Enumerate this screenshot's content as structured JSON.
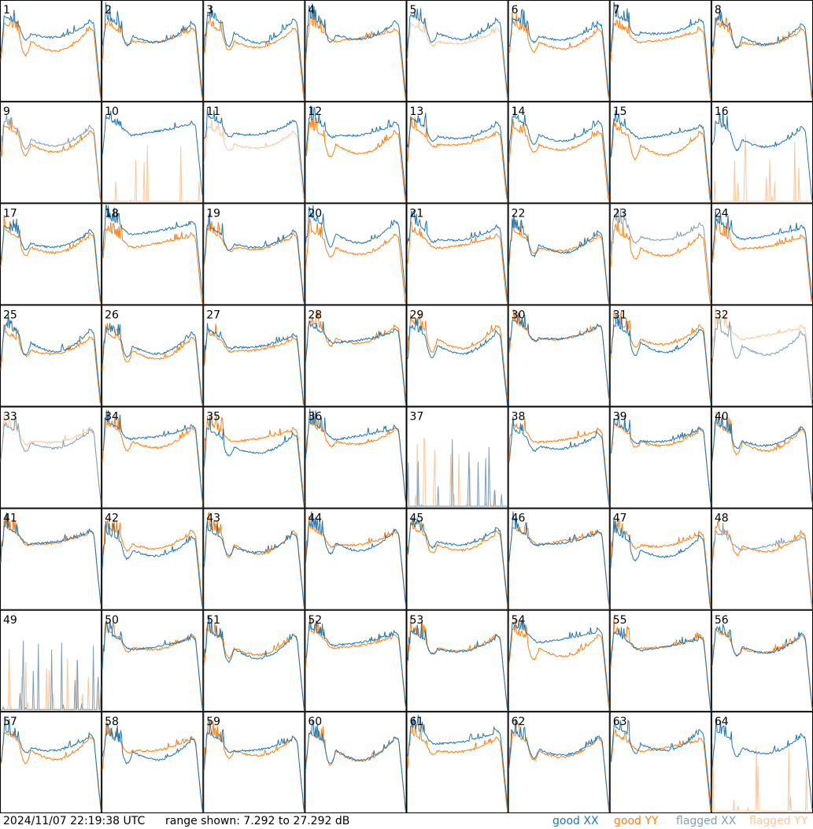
{
  "footer": {
    "timestamp": "2024/11/07 22:19:38 UTC",
    "range_text": "range shown: 7.292 to 27.292 dB"
  },
  "legend": [
    {
      "label": "good XX",
      "color": "#1f77b4"
    },
    {
      "label": "good YY",
      "color": "#ff7f0e"
    },
    {
      "label": "flagged XX",
      "color": "#7f9fb8"
    },
    {
      "label": "flagged YY",
      "color": "#fbc79a"
    }
  ],
  "chart_data": {
    "type": "line",
    "ylim": [
      7.292,
      27.292
    ],
    "units": "dB",
    "grid_rows": 8,
    "grid_cols": 8,
    "panels": [
      {
        "id": "1",
        "xx": "good",
        "yy": "good"
      },
      {
        "id": "2",
        "xx": "good",
        "yy": "good"
      },
      {
        "id": "3",
        "xx": "good",
        "yy": "good"
      },
      {
        "id": "4",
        "xx": "good",
        "yy": "good"
      },
      {
        "id": "5",
        "xx": "good",
        "yy": "flagged"
      },
      {
        "id": "6",
        "xx": "good",
        "yy": "good"
      },
      {
        "id": "7",
        "xx": "good",
        "yy": "good"
      },
      {
        "id": "8",
        "xx": "good",
        "yy": "good"
      },
      {
        "id": "9",
        "xx": "flagged",
        "yy": "good"
      },
      {
        "id": "10",
        "xx": "good",
        "yy": "flagged"
      },
      {
        "id": "11",
        "xx": "good",
        "yy": "flagged"
      },
      {
        "id": "12",
        "xx": "good",
        "yy": "good"
      },
      {
        "id": "13",
        "xx": "good",
        "yy": "good"
      },
      {
        "id": "14",
        "xx": "good",
        "yy": "good"
      },
      {
        "id": "15",
        "xx": "good",
        "yy": "good"
      },
      {
        "id": "16",
        "xx": "good",
        "yy": "flagged"
      },
      {
        "id": "17",
        "xx": "good",
        "yy": "good"
      },
      {
        "id": "18",
        "xx": "good",
        "yy": "good"
      },
      {
        "id": "19",
        "xx": "good",
        "yy": "good"
      },
      {
        "id": "20",
        "xx": "good",
        "yy": "good"
      },
      {
        "id": "21",
        "xx": "good",
        "yy": "good"
      },
      {
        "id": "22",
        "xx": "good",
        "yy": "good"
      },
      {
        "id": "23",
        "xx": "flagged",
        "yy": "good"
      },
      {
        "id": "24",
        "xx": "good",
        "yy": "good"
      },
      {
        "id": "25",
        "xx": "good",
        "yy": "good"
      },
      {
        "id": "26",
        "xx": "good",
        "yy": "good"
      },
      {
        "id": "27",
        "xx": "good",
        "yy": "good"
      },
      {
        "id": "28",
        "xx": "good",
        "yy": "good"
      },
      {
        "id": "29",
        "xx": "good",
        "yy": "good"
      },
      {
        "id": "30",
        "xx": "good",
        "yy": "good"
      },
      {
        "id": "31",
        "xx": "good",
        "yy": "good"
      },
      {
        "id": "32",
        "xx": "flagged",
        "yy": "flagged"
      },
      {
        "id": "33",
        "xx": "flagged",
        "yy": "flagged"
      },
      {
        "id": "34",
        "xx": "good",
        "yy": "good"
      },
      {
        "id": "35",
        "xx": "good",
        "yy": "good"
      },
      {
        "id": "36",
        "xx": "good",
        "yy": "good"
      },
      {
        "id": "37",
        "xx": "flagged",
        "yy": "flagged"
      },
      {
        "id": "38",
        "xx": "good",
        "yy": "good"
      },
      {
        "id": "39",
        "xx": "good",
        "yy": "good"
      },
      {
        "id": "40",
        "xx": "good",
        "yy": "good"
      },
      {
        "id": "41",
        "xx": "good",
        "yy": "good"
      },
      {
        "id": "42",
        "xx": "good",
        "yy": "good"
      },
      {
        "id": "43",
        "xx": "good",
        "yy": "good"
      },
      {
        "id": "44",
        "xx": "good",
        "yy": "good"
      },
      {
        "id": "45",
        "xx": "good",
        "yy": "good"
      },
      {
        "id": "46",
        "xx": "good",
        "yy": "good"
      },
      {
        "id": "47",
        "xx": "good",
        "yy": "good"
      },
      {
        "id": "48",
        "xx": "flagged",
        "yy": "good"
      },
      {
        "id": "49",
        "xx": "flagged",
        "yy": "flagged"
      },
      {
        "id": "50",
        "xx": "good",
        "yy": "good"
      },
      {
        "id": "51",
        "xx": "good",
        "yy": "good"
      },
      {
        "id": "52",
        "xx": "good",
        "yy": "good"
      },
      {
        "id": "53",
        "xx": "good",
        "yy": "good"
      },
      {
        "id": "54",
        "xx": "good",
        "yy": "good"
      },
      {
        "id": "55",
        "xx": "good",
        "yy": "good"
      },
      {
        "id": "56",
        "xx": "good",
        "yy": "good"
      },
      {
        "id": "57",
        "xx": "good",
        "yy": "good"
      },
      {
        "id": "58",
        "xx": "good",
        "yy": "good"
      },
      {
        "id": "59",
        "xx": "good",
        "yy": "good"
      },
      {
        "id": "60",
        "xx": "good",
        "yy": "good"
      },
      {
        "id": "61",
        "xx": "good",
        "yy": "good"
      },
      {
        "id": "62",
        "xx": "good",
        "yy": "good"
      },
      {
        "id": "63",
        "xx": "good",
        "yy": "good"
      },
      {
        "id": "64",
        "xx": "good",
        "yy": "flagged"
      }
    ]
  }
}
